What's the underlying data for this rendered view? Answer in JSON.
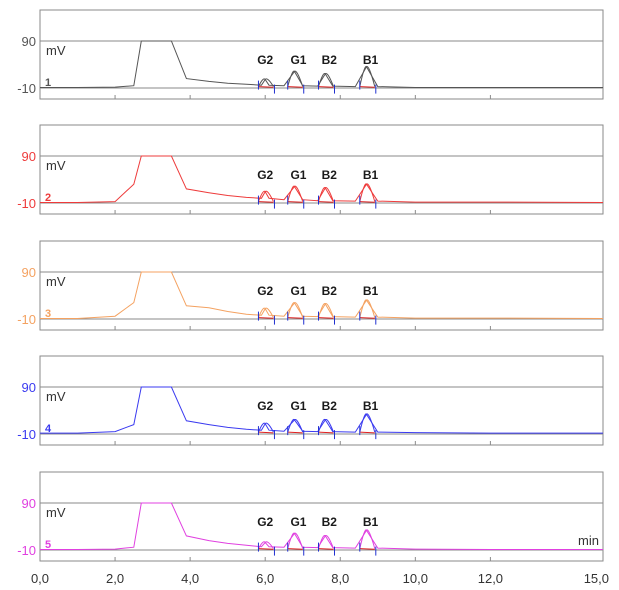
{
  "chart_data": {
    "type": "line",
    "xlim": [
      0,
      15
    ],
    "ylim": [
      -10,
      90
    ],
    "x_unit": "min",
    "y_unit": "mV",
    "x_tick_labels": [
      "0,0",
      "2,0",
      "4,0",
      "6,0",
      "8,0",
      "10,0",
      "12,0",
      "15,0"
    ],
    "x_tick_values": [
      0,
      2,
      4,
      6,
      8,
      10,
      12,
      15
    ],
    "y_tick_labels": [
      "90",
      "-10"
    ],
    "y_tick_values": [
      90,
      -10
    ],
    "peak_labels": [
      "G2",
      "G1",
      "B2",
      "B1"
    ],
    "peak_times": [
      6.0,
      6.78,
      7.6,
      8.7
    ],
    "series": [
      {
        "name": "1",
        "color": "#555555",
        "peak_heights": [
          8,
          25,
          20,
          35
        ],
        "baseline": -9,
        "x": [
          0,
          1,
          2,
          2.5,
          2.7,
          3.5,
          3.9,
          4.5,
          5,
          5.5,
          5.9,
          6.0,
          6.1,
          6.5,
          6.78,
          7.0,
          7.4,
          7.6,
          7.8,
          8.4,
          8.7,
          9.0,
          10,
          12,
          15
        ],
        "y": [
          -9,
          -9,
          -8,
          -5,
          90,
          90,
          10,
          4,
          0,
          -2,
          -4,
          8,
          -4,
          -5,
          25,
          -5,
          -6,
          20,
          -6,
          -7,
          35,
          -7,
          -9,
          -9,
          -9
        ]
      },
      {
        "name": "2",
        "color": "#ee3b3b",
        "peak_heights": [
          14,
          25,
          22,
          30
        ],
        "baseline": -9,
        "x": [
          0,
          1,
          2,
          2.5,
          2.7,
          3.5,
          3.9,
          4.5,
          5,
          5.5,
          5.9,
          6.0,
          6.1,
          6.5,
          6.78,
          7.0,
          7.4,
          7.6,
          7.8,
          8.4,
          8.7,
          9.0,
          10,
          12,
          15
        ],
        "y": [
          -9,
          -9,
          -7,
          30,
          90,
          90,
          20,
          12,
          6,
          2,
          0,
          14,
          0,
          -3,
          25,
          -3,
          -5,
          22,
          -5,
          -6,
          30,
          -6,
          -8,
          -8,
          -9
        ]
      },
      {
        "name": "3",
        "color": "#f4a261",
        "peak_heights": [
          12,
          24,
          22,
          30
        ],
        "baseline": -9,
        "x": [
          0,
          1,
          2,
          2.5,
          2.7,
          3.5,
          3.9,
          4.5,
          5,
          5.5,
          5.9,
          6.0,
          6.1,
          6.5,
          6.78,
          7.0,
          7.4,
          7.6,
          7.8,
          8.4,
          8.7,
          9.0,
          10,
          12,
          15
        ],
        "y": [
          -9,
          -9,
          -4,
          25,
          90,
          90,
          18,
          14,
          6,
          0,
          -2,
          12,
          -2,
          -4,
          24,
          -4,
          -5,
          22,
          -5,
          -6,
          30,
          -6,
          -8,
          -8,
          -9
        ]
      },
      {
        "name": "4",
        "color": "#3a3af0",
        "peak_heights": [
          12,
          20,
          20,
          32
        ],
        "baseline": -8,
        "x": [
          0,
          1,
          2,
          2.5,
          2.7,
          3.5,
          3.9,
          4.5,
          5,
          5.5,
          5.9,
          6.0,
          6.1,
          6.5,
          6.78,
          7.0,
          7.4,
          7.6,
          7.8,
          8.4,
          8.7,
          9.0,
          10,
          12,
          15
        ],
        "y": [
          -8,
          -8,
          -5,
          10,
          90,
          90,
          18,
          10,
          4,
          0,
          -2,
          12,
          -2,
          -4,
          20,
          -4,
          -5,
          20,
          -5,
          -6,
          32,
          -6,
          -7,
          -8,
          -8
        ]
      },
      {
        "name": "5",
        "color": "#e040e0",
        "peak_heights": [
          6,
          25,
          20,
          32
        ],
        "baseline": -9,
        "x": [
          0,
          1,
          2,
          2.5,
          2.7,
          3.5,
          3.9,
          4.5,
          5,
          5.5,
          5.9,
          6.0,
          6.1,
          6.5,
          6.78,
          7.0,
          7.4,
          7.6,
          7.8,
          8.4,
          8.7,
          9.0,
          10,
          12,
          15
        ],
        "y": [
          -9,
          -9,
          -8,
          -4,
          90,
          90,
          20,
          10,
          4,
          0,
          -3,
          6,
          -3,
          -4,
          25,
          -4,
          -5,
          20,
          -5,
          -6,
          32,
          -6,
          -8,
          -9,
          -9
        ]
      }
    ]
  }
}
